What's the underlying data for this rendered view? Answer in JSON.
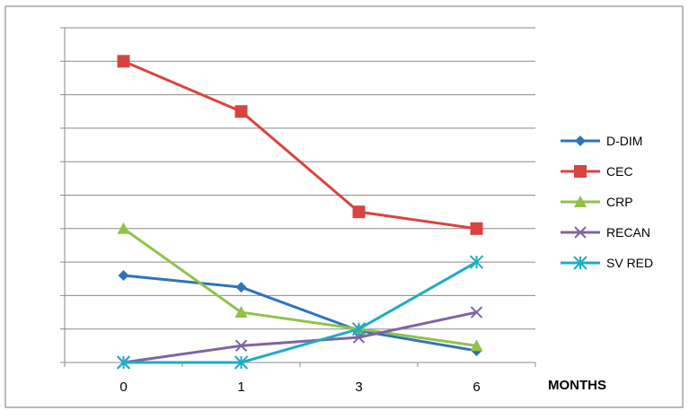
{
  "chart_data": {
    "type": "line",
    "title": "",
    "xlabel": "MONTHS",
    "ylabel": "",
    "categories": [
      "0",
      "1",
      "3",
      "6"
    ],
    "ylim": [
      0,
      10
    ],
    "grid": true,
    "legend_position": "right",
    "series": [
      {
        "name": "D-DIM",
        "color": "#2E75B6",
        "marker": "diamond",
        "values": [
          2.6,
          2.25,
          0.95,
          0.35
        ]
      },
      {
        "name": "CEC",
        "color": "#D9433F",
        "marker": "square",
        "values": [
          9.0,
          7.5,
          4.5,
          4.0
        ]
      },
      {
        "name": "CRP",
        "color": "#92C14A",
        "marker": "triangle",
        "values": [
          4.0,
          1.5,
          1.0,
          0.5
        ]
      },
      {
        "name": "RECAN",
        "color": "#8064A2",
        "marker": "x",
        "values": [
          0.0,
          0.5,
          0.75,
          1.5
        ]
      },
      {
        "name": "SV RED",
        "color": "#1FACC6",
        "marker": "star",
        "values": [
          0.0,
          0.0,
          1.0,
          3.0
        ]
      }
    ]
  }
}
